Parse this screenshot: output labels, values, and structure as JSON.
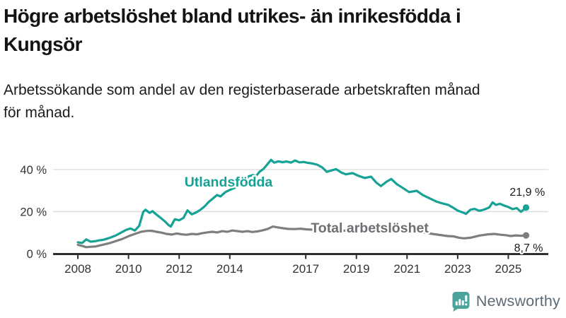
{
  "header": {
    "title_lines": [
      "Högre arbetslöshet bland utrikes- än inrikesfödda i",
      "Kungsör"
    ],
    "subtitle_lines": [
      "Arbetssökande som andel av den registerbaserade arbetskraften månad",
      "för månad."
    ]
  },
  "colors": {
    "foreign_born": "#16a294",
    "total_line": "#7e7e7e",
    "total_label": "#6e6e73",
    "grid": "#dcdcdc",
    "axis": "#2e2e2e",
    "tick_label": "#333333",
    "value_label": "#1a1a1a",
    "halo": "#ffffff",
    "background": "#ffffff",
    "logo_icon": "#4ba49c",
    "logo_text": "#5d6a76"
  },
  "chart_data": {
    "type": "line",
    "title": "Högre arbetslöshet bland utrikes- än inrikesfödda i Kungsör",
    "subtitle": "Arbetssökande som andel av den registerbaserade arbetskraften månad för månad.",
    "xlabel": "",
    "ylabel": "",
    "xlim": [
      2007.02,
      2026.58
    ],
    "ylim": [
      0,
      45
    ],
    "grid": true,
    "x_ticks": [
      2008,
      2010,
      2012,
      2014,
      2017,
      2019,
      2021,
      2023,
      2025
    ],
    "x_tick_labels": [
      "2008",
      "2010",
      "2012",
      "2014",
      "2017",
      "2019",
      "2021",
      "2023",
      "2025"
    ],
    "y_ticks": [
      0,
      20,
      40
    ],
    "y_tick_labels": [
      "0 %",
      "20 %",
      "40 %"
    ],
    "series": [
      {
        "name": "Total arbetslöshet",
        "color": "#7e7e7e",
        "end_label": "8,7 %",
        "end_value": 8.7,
        "points": [
          [
            2008.0,
            4.2
          ],
          [
            2008.17,
            3.7
          ],
          [
            2008.33,
            3.1
          ],
          [
            2008.5,
            3.3
          ],
          [
            2008.67,
            3.4
          ],
          [
            2008.83,
            3.8
          ],
          [
            2009.0,
            4.3
          ],
          [
            2009.25,
            5.0
          ],
          [
            2009.5,
            6.0
          ],
          [
            2009.75,
            7.0
          ],
          [
            2010.0,
            8.3
          ],
          [
            2010.25,
            9.4
          ],
          [
            2010.5,
            10.4
          ],
          [
            2010.7,
            10.8
          ],
          [
            2010.9,
            10.9
          ],
          [
            2011.1,
            10.4
          ],
          [
            2011.3,
            10.0
          ],
          [
            2011.5,
            9.4
          ],
          [
            2011.7,
            9.1
          ],
          [
            2011.9,
            9.6
          ],
          [
            2012.1,
            9.2
          ],
          [
            2012.3,
            9.0
          ],
          [
            2012.5,
            9.4
          ],
          [
            2012.7,
            9.2
          ],
          [
            2012.9,
            9.7
          ],
          [
            2013.1,
            10.1
          ],
          [
            2013.3,
            10.4
          ],
          [
            2013.5,
            10.1
          ],
          [
            2013.7,
            10.7
          ],
          [
            2013.9,
            10.4
          ],
          [
            2014.1,
            11.0
          ],
          [
            2014.3,
            10.7
          ],
          [
            2014.5,
            10.4
          ],
          [
            2014.7,
            10.7
          ],
          [
            2014.9,
            10.3
          ],
          [
            2015.1,
            10.6
          ],
          [
            2015.3,
            11.1
          ],
          [
            2015.5,
            11.8
          ],
          [
            2015.7,
            12.9
          ],
          [
            2015.9,
            12.5
          ],
          [
            2016.1,
            12.1
          ],
          [
            2016.3,
            11.8
          ],
          [
            2016.55,
            11.7
          ],
          [
            2016.8,
            11.9
          ],
          [
            2017.0,
            11.6
          ],
          [
            2017.3,
            11.4
          ],
          [
            2017.6,
            11.2
          ],
          [
            2017.9,
            11.0
          ],
          [
            2018.2,
            11.2
          ],
          [
            2018.5,
            10.9
          ],
          [
            2018.8,
            11.1
          ],
          [
            2019.1,
            10.8
          ],
          [
            2019.4,
            10.6
          ],
          [
            2019.7,
            10.9
          ],
          [
            2020.0,
            11.4
          ],
          [
            2020.3,
            12.4
          ],
          [
            2020.5,
            12.7
          ],
          [
            2020.8,
            12.2
          ],
          [
            2021.1,
            11.4
          ],
          [
            2021.4,
            10.6
          ],
          [
            2021.7,
            10.0
          ],
          [
            2022.0,
            9.4
          ],
          [
            2022.3,
            8.9
          ],
          [
            2022.6,
            8.4
          ],
          [
            2022.85,
            8.2
          ],
          [
            2023.05,
            7.6
          ],
          [
            2023.25,
            7.3
          ],
          [
            2023.5,
            7.6
          ],
          [
            2023.85,
            8.6
          ],
          [
            2024.2,
            9.2
          ],
          [
            2024.45,
            9.4
          ],
          [
            2024.7,
            9.0
          ],
          [
            2024.9,
            8.8
          ],
          [
            2025.1,
            8.4
          ],
          [
            2025.3,
            8.7
          ],
          [
            2025.5,
            8.5
          ],
          [
            2025.7,
            8.7
          ]
        ]
      },
      {
        "name": "Utlandsfödda",
        "color": "#16a294",
        "end_label": "21,9 %",
        "end_value": 21.9,
        "points": [
          [
            2008.0,
            5.4
          ],
          [
            2008.17,
            5.1
          ],
          [
            2008.33,
            6.8
          ],
          [
            2008.5,
            5.7
          ],
          [
            2008.67,
            5.9
          ],
          [
            2008.83,
            6.3
          ],
          [
            2009.0,
            6.6
          ],
          [
            2009.25,
            7.5
          ],
          [
            2009.5,
            8.7
          ],
          [
            2009.75,
            10.3
          ],
          [
            2009.92,
            11.4
          ],
          [
            2010.08,
            12.0
          ],
          [
            2010.25,
            11.0
          ],
          [
            2010.42,
            13.2
          ],
          [
            2010.58,
            19.8
          ],
          [
            2010.67,
            20.9
          ],
          [
            2010.83,
            19.4
          ],
          [
            2010.95,
            20.2
          ],
          [
            2011.08,
            18.8
          ],
          [
            2011.25,
            17.2
          ],
          [
            2011.42,
            15.5
          ],
          [
            2011.58,
            13.6
          ],
          [
            2011.67,
            12.9
          ],
          [
            2011.83,
            16.4
          ],
          [
            2012.0,
            15.9
          ],
          [
            2012.17,
            17.0
          ],
          [
            2012.33,
            20.6
          ],
          [
            2012.5,
            18.7
          ],
          [
            2012.67,
            19.6
          ],
          [
            2012.83,
            20.8
          ],
          [
            2013.0,
            22.4
          ],
          [
            2013.17,
            24.6
          ],
          [
            2013.33,
            26.2
          ],
          [
            2013.5,
            27.9
          ],
          [
            2013.63,
            27.2
          ],
          [
            2013.83,
            29.3
          ],
          [
            2014.0,
            30.3
          ],
          [
            2014.25,
            31.6
          ],
          [
            2014.5,
            33.9
          ],
          [
            2014.75,
            36.8
          ],
          [
            2014.92,
            37.4
          ],
          [
            2015.04,
            36.9
          ],
          [
            2015.17,
            38.9
          ],
          [
            2015.33,
            40.3
          ],
          [
            2015.5,
            42.7
          ],
          [
            2015.63,
            44.6
          ],
          [
            2015.75,
            43.3
          ],
          [
            2015.92,
            43.9
          ],
          [
            2016.08,
            43.5
          ],
          [
            2016.25,
            43.8
          ],
          [
            2016.42,
            43.3
          ],
          [
            2016.58,
            44.3
          ],
          [
            2016.75,
            43.4
          ],
          [
            2016.92,
            43.6
          ],
          [
            2017.08,
            43.2
          ],
          [
            2017.25,
            42.9
          ],
          [
            2017.45,
            42.3
          ],
          [
            2017.65,
            41.0
          ],
          [
            2017.83,
            38.9
          ],
          [
            2018.0,
            39.5
          ],
          [
            2018.2,
            40.2
          ],
          [
            2018.4,
            38.6
          ],
          [
            2018.58,
            37.7
          ],
          [
            2018.85,
            38.3
          ],
          [
            2019.08,
            37.0
          ],
          [
            2019.33,
            36.0
          ],
          [
            2019.58,
            36.6
          ],
          [
            2019.78,
            33.9
          ],
          [
            2019.97,
            32.1
          ],
          [
            2020.2,
            34.3
          ],
          [
            2020.38,
            35.5
          ],
          [
            2020.6,
            33.0
          ],
          [
            2020.8,
            31.5
          ],
          [
            2021.08,
            29.3
          ],
          [
            2021.38,
            29.9
          ],
          [
            2021.63,
            27.8
          ],
          [
            2021.88,
            26.4
          ],
          [
            2022.17,
            24.7
          ],
          [
            2022.42,
            23.8
          ],
          [
            2022.63,
            23.2
          ],
          [
            2022.83,
            21.8
          ],
          [
            2023.0,
            20.5
          ],
          [
            2023.2,
            19.6
          ],
          [
            2023.33,
            18.9
          ],
          [
            2023.5,
            20.9
          ],
          [
            2023.67,
            21.3
          ],
          [
            2023.85,
            20.4
          ],
          [
            2024.05,
            21.0
          ],
          [
            2024.25,
            22.0
          ],
          [
            2024.38,
            24.4
          ],
          [
            2024.5,
            23.2
          ],
          [
            2024.67,
            23.7
          ],
          [
            2024.85,
            22.8
          ],
          [
            2025.0,
            22.2
          ],
          [
            2025.17,
            21.2
          ],
          [
            2025.33,
            21.7
          ],
          [
            2025.5,
            19.9
          ],
          [
            2025.7,
            21.9
          ]
        ]
      }
    ],
    "annotations": [
      {
        "id": "label-utlandsfodda",
        "text": "Utlandsfödda",
        "x": 2013.95,
        "y": 31.9,
        "anchor": "middle",
        "size": 19.5,
        "weight": 700,
        "color": "#16a294",
        "halo": 5
      },
      {
        "id": "label-total-arbetsloshet",
        "text": "Total arbetslöshet",
        "x": 2017.2,
        "y": 10.1,
        "anchor": "start",
        "size": 19.5,
        "weight": 700,
        "color": "#6e6e73",
        "halo": 5
      },
      {
        "id": "end-value-utlandsfodda",
        "text": "21,9 %",
        "x": 2025.75,
        "y": 27.6,
        "anchor": "middle",
        "size": 16,
        "weight": 400,
        "color": "#1a1a1a",
        "halo": 4
      },
      {
        "id": "end-value-total",
        "text": "8,7 %",
        "x": 2025.8,
        "y": 1.0,
        "anchor": "middle",
        "size": 16,
        "weight": 400,
        "color": "#1a1a1a",
        "halo": 4
      }
    ],
    "legend_position": "inline-labels"
  },
  "logo": {
    "text": "Newsworthy",
    "icon": "speech-bubble-bar-chart"
  }
}
